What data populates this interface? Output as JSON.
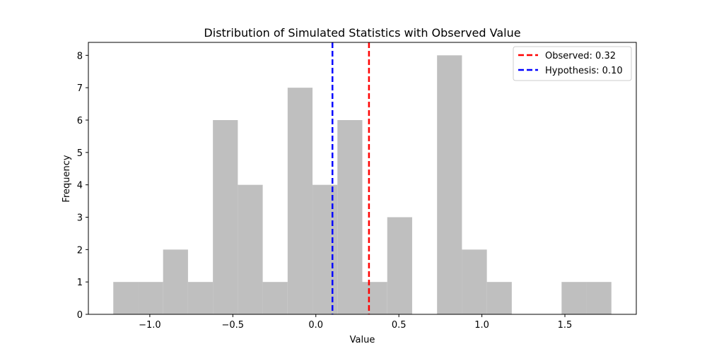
{
  "chart_data": {
    "type": "bar",
    "title": "Distribution of Simulated Statistics with Observed Value",
    "xlabel": "Value",
    "ylabel": "Frequency",
    "xlim": [
      -1.37,
      1.93
    ],
    "ylim": [
      0,
      8.4
    ],
    "x_ticks": [
      -1.0,
      -0.5,
      0.0,
      0.5,
      1.0,
      1.5
    ],
    "x_tick_labels": [
      "−1.0",
      "−0.5",
      "0.0",
      "0.5",
      "1.0",
      "1.5"
    ],
    "y_ticks": [
      0,
      1,
      2,
      3,
      4,
      5,
      6,
      7,
      8
    ],
    "y_tick_labels": [
      "0",
      "1",
      "2",
      "3",
      "4",
      "5",
      "6",
      "7",
      "8"
    ],
    "bin_edges": [
      -1.22,
      -1.07,
      -0.92,
      -0.77,
      -0.62,
      -0.47,
      -0.32,
      -0.17,
      -0.02,
      0.13,
      0.28,
      0.43,
      0.58,
      0.73,
      0.88,
      1.03,
      1.18,
      1.33,
      1.48,
      1.63,
      1.78
    ],
    "counts": [
      1,
      1,
      2,
      1,
      6,
      4,
      1,
      7,
      4,
      6,
      1,
      3,
      0,
      8,
      2,
      1,
      0,
      0,
      1,
      1
    ],
    "bar_color": "#bfbfbf",
    "vlines": [
      {
        "x": 0.32,
        "color": "#ff0000",
        "style": "dashed",
        "label": "Observed: 0.32"
      },
      {
        "x": 0.1,
        "color": "#0000ff",
        "style": "dashed",
        "label": "Hypothesis: 0.10"
      }
    ],
    "legend": {
      "placement": "top-right",
      "entries": [
        {
          "label": "Observed: 0.32",
          "color": "#ff0000"
        },
        {
          "label": "Hypothesis: 0.10",
          "color": "#0000ff"
        }
      ]
    },
    "grid": false
  }
}
